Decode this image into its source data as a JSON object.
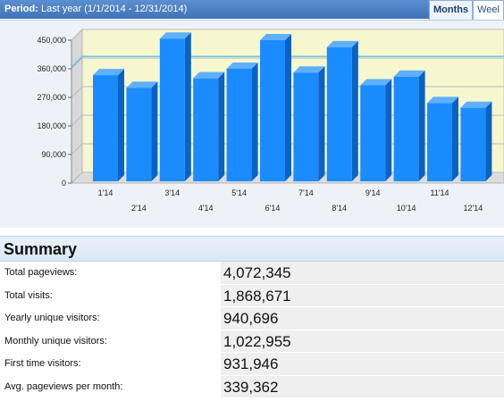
{
  "period": {
    "label": "Period:",
    "value": "Last year (1/1/2014 - 12/31/2014)"
  },
  "tabs": [
    {
      "label": "Months",
      "active": true
    },
    {
      "label": "Weel",
      "active": false
    }
  ],
  "chart_data": {
    "type": "bar",
    "categories": [
      "1'14",
      "2'14",
      "3'14",
      "4'14",
      "5'14",
      "6'14",
      "7'14",
      "8'14",
      "9'14",
      "10'14",
      "11'14",
      "12'14"
    ],
    "values": [
      340000,
      300000,
      455000,
      330000,
      360000,
      450000,
      348000,
      428000,
      308000,
      335000,
      252000,
      237000
    ],
    "ylim": [
      0,
      450000
    ],
    "yticks": [
      0,
      90000,
      180000,
      270000,
      360000,
      450000
    ],
    "ytick_labels": [
      "0",
      "90,000",
      "180,000",
      "270,000",
      "360,000",
      "450,000"
    ],
    "reference_line": 365000,
    "grid": true,
    "colors": {
      "bar": "#1a8cff",
      "bar_side": "#0a62c2",
      "bar_top": "#5fb0ff",
      "plot_bg": "#f6f7cf",
      "reference": "#6ec6e8"
    }
  },
  "summary": {
    "title": "Summary",
    "rows": [
      {
        "label": "Total pageviews:",
        "value": "4,072,345"
      },
      {
        "label": "Total visits:",
        "value": "1,868,671"
      },
      {
        "label": "Yearly unique visitors:",
        "value": "940,696"
      },
      {
        "label": "Monthly unique visitors:",
        "value": "1,022,955"
      },
      {
        "label": "First time visitors:",
        "value": "931,946"
      },
      {
        "label": "Avg. pageviews per month:",
        "value": "339,362"
      }
    ]
  }
}
